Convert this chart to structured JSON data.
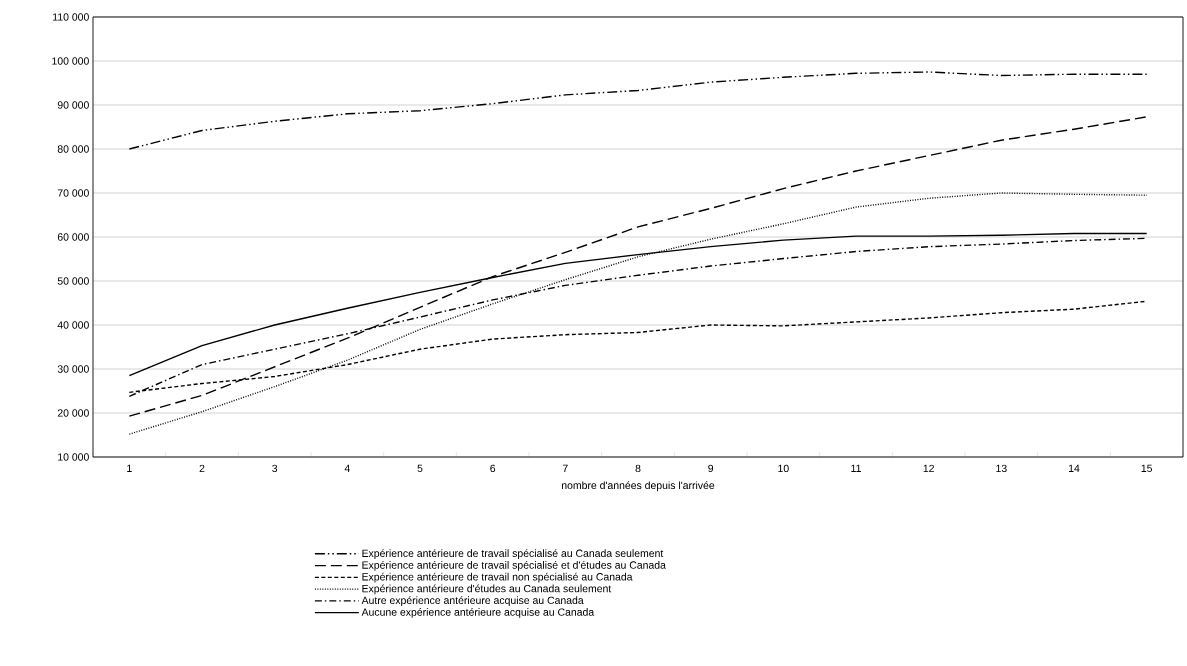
{
  "chart_data": {
    "type": "line",
    "xlabel": "nombre d'années depuis l'arrivée",
    "categories": [
      "1",
      "2",
      "3",
      "4",
      "5",
      "6",
      "7",
      "8",
      "9",
      "10",
      "11",
      "12",
      "13",
      "14",
      "15"
    ],
    "ylim": [
      10000,
      110000
    ],
    "yticks": [
      {
        "value": 10000,
        "label": "10 000"
      },
      {
        "value": 20000,
        "label": "20 000"
      },
      {
        "value": 30000,
        "label": "30 000"
      },
      {
        "value": 40000,
        "label": "40 000"
      },
      {
        "value": 50000,
        "label": "50 000"
      },
      {
        "value": 60000,
        "label": "60 000"
      },
      {
        "value": 70000,
        "label": "70 000"
      },
      {
        "value": 80000,
        "label": "80 000"
      },
      {
        "value": 90000,
        "label": "90 000"
      },
      {
        "value": 100000,
        "label": "100 000"
      },
      {
        "value": 110000,
        "label": "110 000"
      }
    ],
    "grid": "y",
    "legend": "bottom",
    "series": [
      {
        "name": "Expérience antérieure de travail spécialisé au Canada seulement",
        "color": "#000000",
        "line_style": "dashdotdot",
        "values": [
          80000,
          84200,
          86300,
          88000,
          88700,
          90300,
          92300,
          93300,
          95200,
          96300,
          97200,
          97500,
          96700,
          97000,
          97000
        ]
      },
      {
        "name": "Expérience antérieure de travail spécialisé et d'études au Canada",
        "color": "#000000",
        "line_style": "longdash",
        "values": [
          19300,
          24000,
          30500,
          37000,
          44000,
          51000,
          56500,
          62300,
          66500,
          71000,
          75000,
          78500,
          82000,
          84500,
          87300
        ]
      },
      {
        "name": "Expérience antérieure de travail non spécialisé au Canada",
        "color": "#000000",
        "line_style": "dashed",
        "values": [
          24700,
          26700,
          28300,
          31000,
          34500,
          36800,
          37800,
          38300,
          40000,
          39800,
          40700,
          41600,
          42800,
          43600,
          45400
        ]
      },
      {
        "name": "Expérience antérieure d'études au Canada seulement",
        "color": "#000000",
        "line_style": "dotted",
        "values": [
          15200,
          20300,
          26000,
          32000,
          39000,
          44800,
          50300,
          55500,
          59500,
          63000,
          66800,
          68800,
          70000,
          69700,
          69500
        ]
      },
      {
        "name": "Autre expérience antérieure acquise au Canada",
        "color": "#000000",
        "line_style": "dashdot",
        "values": [
          23800,
          31000,
          34500,
          38000,
          41800,
          45700,
          49000,
          51300,
          53400,
          55100,
          56700,
          57800,
          58400,
          59200,
          59700
        ]
      },
      {
        "name": "Aucune expérience antérieure acquise au Canada",
        "color": "#000000",
        "line_style": "solid",
        "values": [
          28500,
          35300,
          40000,
          43800,
          47400,
          50800,
          54000,
          56000,
          57800,
          59300,
          60200,
          60200,
          60400,
          60800,
          60800
        ]
      }
    ]
  }
}
